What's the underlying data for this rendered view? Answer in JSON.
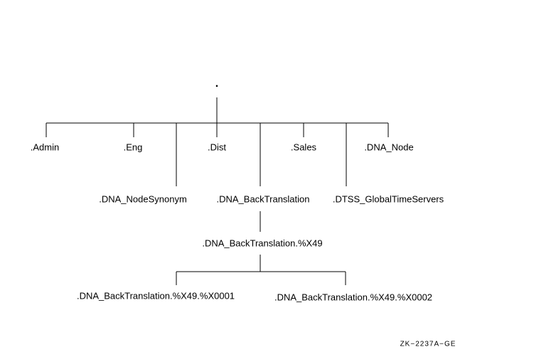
{
  "root": {
    "label": "."
  },
  "nodes": [
    {
      "label": ".Admin"
    },
    {
      "label": ".Eng"
    },
    {
      "label": ".Dist"
    },
    {
      "label": ".Sales"
    },
    {
      "label": ".DNA_Node"
    },
    {
      "label": ".DNA_NodeSynonym"
    },
    {
      "label": ".DNA_BackTranslation"
    },
    {
      "label": ".DTSS_GlobalTimeServers"
    },
    {
      "label": ".DNA_BackTranslation.%X49"
    },
    {
      "label": ".DNA_BackTranslation.%X49.%X0001"
    },
    {
      "label": ".DNA_BackTranslation.%X49.%X0002"
    }
  ],
  "figure_id": "ZK−2237A−GE"
}
